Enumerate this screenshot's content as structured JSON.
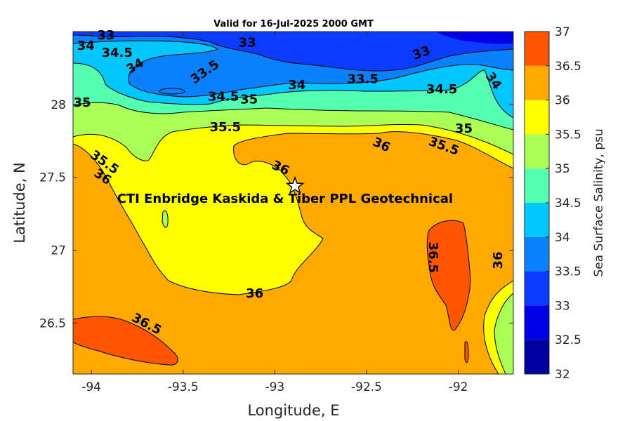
{
  "chart_data": {
    "type": "contour",
    "title": "Valid for 16-Jul-2025 2000 GMT",
    "xlabel": "Longitude, E",
    "ylabel": "Latitude, N",
    "colorbar_label": "Sea Surface Salinity, psu",
    "xlim": [
      -94.1,
      -91.7
    ],
    "ylim": [
      26.15,
      28.5
    ],
    "x_ticks": [
      -94,
      -93.5,
      -93,
      -92.5,
      -92
    ],
    "x_tick_labels": [
      "-94",
      "-93.5",
      "-93",
      "-92.5",
      "-92"
    ],
    "y_ticks": [
      26.5,
      27,
      27.5,
      28
    ],
    "y_tick_labels": [
      "26.5",
      "27",
      "27.5",
      "28"
    ],
    "colorbar_range": [
      32,
      37
    ],
    "colorbar_ticks": [
      "32",
      "32.5",
      "33",
      "33.5",
      "34",
      "34.5",
      "35",
      "35.5",
      "36",
      "36.5",
      "37"
    ],
    "levels": [
      32,
      32.5,
      33,
      33.5,
      34,
      34.5,
      35,
      35.5,
      36,
      36.5,
      37
    ],
    "colors": [
      "#00009f",
      "#0000e6",
      "#0a3cff",
      "#0a82ff",
      "#00c8ff",
      "#55ffb0",
      "#aaff55",
      "#ffff00",
      "#ffaa00",
      "#ff5500"
    ],
    "contour_labels": [
      {
        "text": "33",
        "x": -93.92,
        "y": 28.47,
        "rotation": 0
      },
      {
        "text": "34",
        "x": -94.03,
        "y": 28.4,
        "rotation": 0
      },
      {
        "text": "34.5",
        "x": -93.86,
        "y": 28.35,
        "rotation": 0
      },
      {
        "text": "34",
        "x": -93.76,
        "y": 28.26,
        "rotation": -30
      },
      {
        "text": "33",
        "x": -93.15,
        "y": 28.42,
        "rotation": 0
      },
      {
        "text": "33.5",
        "x": -93.38,
        "y": 28.22,
        "rotation": -35
      },
      {
        "text": "33",
        "x": -92.2,
        "y": 28.35,
        "rotation": -20
      },
      {
        "text": "33.5",
        "x": -92.52,
        "y": 28.17,
        "rotation": 0
      },
      {
        "text": "34",
        "x": -92.88,
        "y": 28.13,
        "rotation": 0
      },
      {
        "text": "34.5",
        "x": -93.28,
        "y": 28.05,
        "rotation": 0
      },
      {
        "text": "35",
        "x": -93.14,
        "y": 28.03,
        "rotation": 0
      },
      {
        "text": "34.5",
        "x": -92.09,
        "y": 28.1,
        "rotation": 0
      },
      {
        "text": "34",
        "x": -91.81,
        "y": 28.16,
        "rotation": 55
      },
      {
        "text": "35",
        "x": -94.05,
        "y": 28.01,
        "rotation": 0
      },
      {
        "text": "35.5",
        "x": -93.27,
        "y": 27.84,
        "rotation": 0
      },
      {
        "text": "35",
        "x": -91.97,
        "y": 27.83,
        "rotation": 0
      },
      {
        "text": "35.5",
        "x": -92.08,
        "y": 27.71,
        "rotation": 20
      },
      {
        "text": "36",
        "x": -92.42,
        "y": 27.72,
        "rotation": 25
      },
      {
        "text": "35.5",
        "x": -93.93,
        "y": 27.6,
        "rotation": 35
      },
      {
        "text": "36",
        "x": -93.94,
        "y": 27.5,
        "rotation": 35
      },
      {
        "text": "36",
        "x": -92.97,
        "y": 27.56,
        "rotation": 25
      },
      {
        "text": "36.5",
        "x": -92.14,
        "y": 26.95,
        "rotation": 90
      },
      {
        "text": "36",
        "x": -91.78,
        "y": 26.93,
        "rotation": -90
      },
      {
        "text": "36",
        "x": -93.11,
        "y": 26.7,
        "rotation": 0
      },
      {
        "text": "36.5",
        "x": -93.7,
        "y": 26.49,
        "rotation": 28
      }
    ],
    "annotations": [
      {
        "text": "CTI Enbridge  Kaskida & Tiber PPL Geotechnical",
        "x": -93.86,
        "y": 27.35
      },
      {
        "marker": "star",
        "x": -92.89,
        "y": 27.44
      }
    ]
  }
}
